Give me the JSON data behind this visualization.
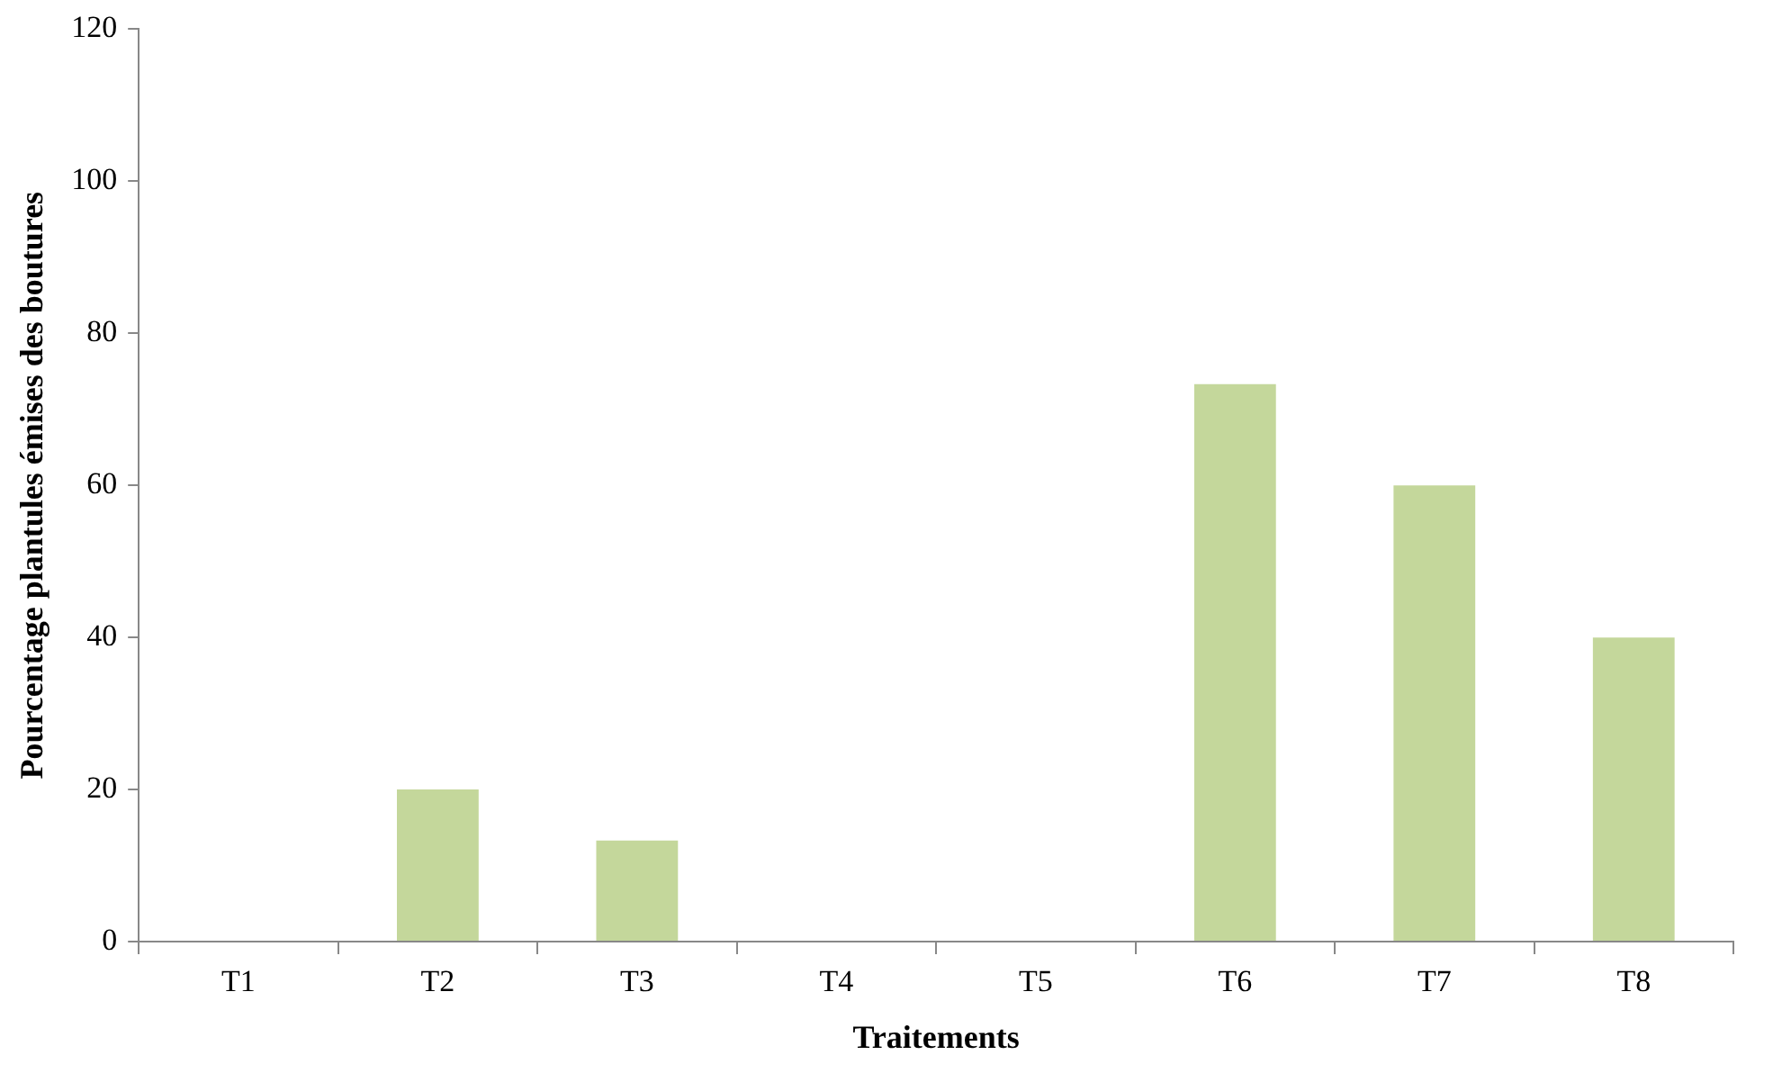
{
  "chart_data": {
    "type": "bar",
    "xlabel": "Traitements",
    "ylabel": "Pourcentage plantules émises des boutures",
    "categories": [
      "T1",
      "T2",
      "T3",
      "T4",
      "T5",
      "T6",
      "T7",
      "T8"
    ],
    "values": [
      0,
      20,
      13.3,
      0,
      0,
      73.3,
      60,
      40
    ],
    "color": "#c4d79b",
    "ylim": [
      0,
      120
    ],
    "yticks": [
      0,
      20,
      40,
      60,
      80,
      100,
      120
    ],
    "grid": false
  }
}
